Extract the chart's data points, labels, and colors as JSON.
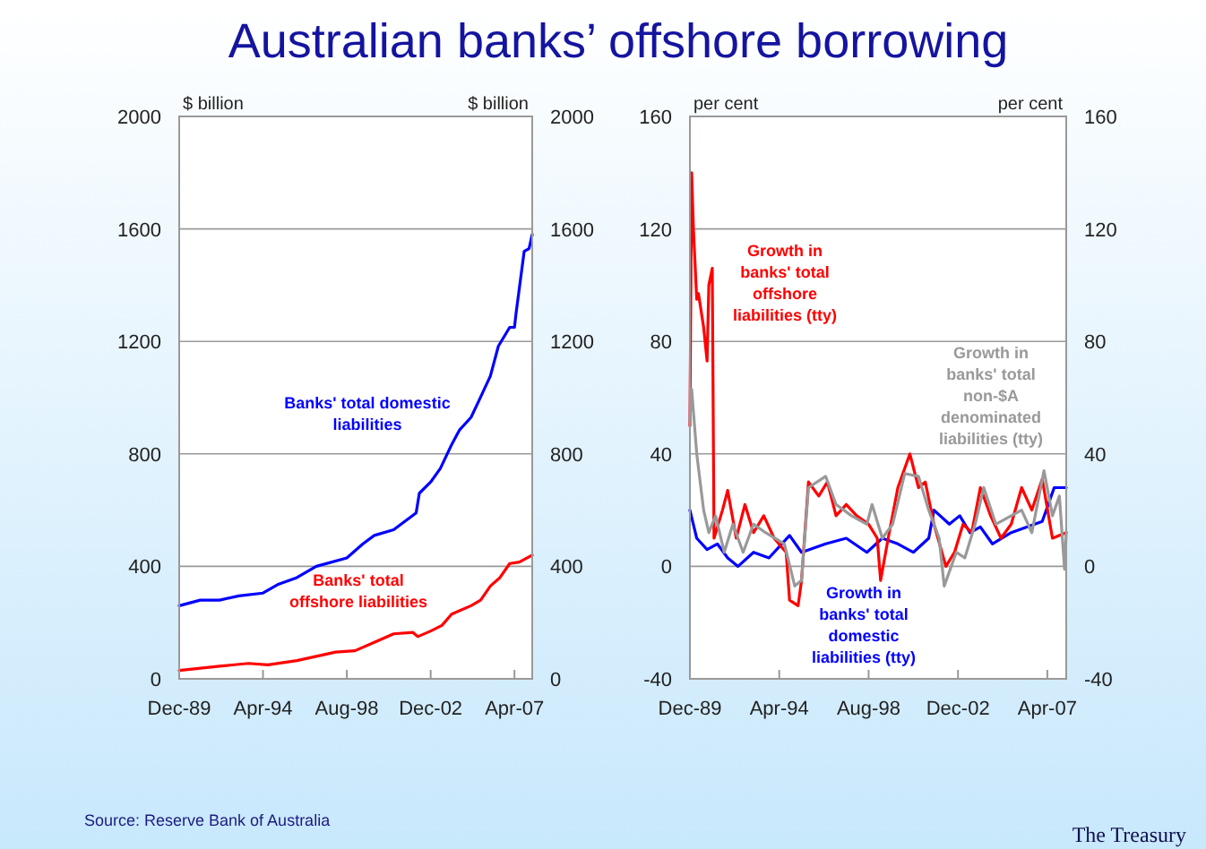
{
  "chart_data": [
    {
      "type": "line",
      "title": "Australian banks’ offshore borrowing",
      "ylabel": "$ billion",
      "y2label": "$ billion",
      "xlim": [
        "1989-12",
        "2008-03"
      ],
      "xticks": [
        {
          "value": "1989-12",
          "label": "Dec-89"
        },
        {
          "value": "1994-04",
          "label": "Apr-94"
        },
        {
          "value": "1998-08",
          "label": "Aug-98"
        },
        {
          "value": "2002-12",
          "label": "Dec-02"
        },
        {
          "value": "2007-04",
          "label": "Apr-07"
        }
      ],
      "ylim": [
        0,
        2000
      ],
      "yticks": [
        0,
        400,
        800,
        1200,
        1600,
        2000
      ],
      "y2lim": [
        0,
        2000
      ],
      "y2ticks": [
        0,
        400,
        800,
        1200,
        1600,
        2000
      ],
      "grid": "y",
      "legend": false,
      "annotations": [
        "Source: Reserve Bank of Australia",
        "The Treasury"
      ],
      "series": [
        {
          "name": "Banks' total domestic liabilities",
          "color": "#0000ff",
          "x": [
            "1989-12",
            "1991-01",
            "1992-01",
            "1993-01",
            "1994-04",
            "1995-01",
            "1996-01",
            "1997-01",
            "1998-08",
            "1999-06",
            "2000-01",
            "2001-01",
            "2002-03",
            "2002-05",
            "2002-12",
            "2003-06",
            "2004-01",
            "2004-06",
            "2005-01",
            "2005-06",
            "2006-01",
            "2006-06",
            "2007-01",
            "2007-04",
            "2007-05",
            "2007-10",
            "2008-01",
            "2008-03"
          ],
          "values": [
            260,
            280,
            280,
            295,
            305,
            335,
            360,
            400,
            430,
            480,
            510,
            530,
            590,
            660,
            700,
            748,
            833,
            886,
            930,
            990,
            1077,
            1183,
            1250,
            1250,
            1300,
            1520,
            1530,
            1580
          ]
        },
        {
          "name": "Banks' total offshore liabilities",
          "color": "#ff0000",
          "x": [
            "1989-12",
            "1992-01",
            "1993-07",
            "1994-07",
            "1996-01",
            "1997-01",
            "1998-01",
            "1999-01",
            "2000-01",
            "2001-01",
            "2002-01",
            "2002-04",
            "2002-12",
            "2003-07",
            "2004-01",
            "2005-01",
            "2005-07",
            "2006-01",
            "2006-07",
            "2007-01",
            "2007-07",
            "2008-03"
          ],
          "values": [
            30,
            45,
            55,
            50,
            65,
            80,
            95,
            100,
            130,
            160,
            165,
            150,
            170,
            190,
            230,
            260,
            280,
            330,
            360,
            410,
            415,
            440
          ]
        }
      ]
    },
    {
      "type": "line",
      "ylabel": "per cent",
      "y2label": "per cent",
      "xlim": [
        "1989-12",
        "2008-03"
      ],
      "xticks": [
        {
          "value": "1989-12",
          "label": "Dec-89"
        },
        {
          "value": "1994-04",
          "label": "Apr-94"
        },
        {
          "value": "1998-08",
          "label": "Aug-98"
        },
        {
          "value": "2002-12",
          "label": "Dec-02"
        },
        {
          "value": "2007-04",
          "label": "Apr-07"
        }
      ],
      "ylim": [
        -40,
        160
      ],
      "yticks": [
        -40,
        0,
        40,
        80,
        120,
        160
      ],
      "y2lim": [
        -40,
        160
      ],
      "y2ticks": [
        -40,
        0,
        40,
        80,
        120,
        160
      ],
      "grid": "y",
      "legend": false,
      "series": [
        {
          "name": "Growth in banks' total domestic liabilities (tty)",
          "color": "#0000ff",
          "x": [
            "1989-12",
            "1990-04",
            "1990-10",
            "1991-04",
            "1991-10",
            "1992-04",
            "1993-01",
            "1993-10",
            "1994-10",
            "1995-05",
            "1996-07",
            "1997-07",
            "1998-07",
            "1999-04",
            "2000-01",
            "2000-10",
            "2001-07",
            "2001-10",
            "2002-07",
            "2003-01",
            "2003-07",
            "2004-01",
            "2004-08",
            "2005-07",
            "2006-04",
            "2007-01",
            "2007-08",
            "2008-03"
          ],
          "values": [
            20,
            10,
            6,
            8,
            3,
            0,
            5,
            3,
            11,
            5,
            8,
            10,
            5,
            10,
            8,
            5,
            10,
            20,
            15,
            18,
            12,
            14,
            8,
            12,
            14,
            16,
            28,
            28
          ]
        },
        {
          "name": "Growth in banks' total offshore liabilities (tty)",
          "color": "#ff0000",
          "x": [
            "1989-12",
            "1990-01",
            "1990-02",
            "1990-04",
            "1990-05",
            "1990-08",
            "1990-10",
            "1990-11",
            "1991-01",
            "1991-02",
            "1991-07",
            "1991-10",
            "1992-03",
            "1992-08",
            "1993-01",
            "1993-07",
            "1994-01",
            "1994-08",
            "1994-10",
            "1995-03",
            "1995-05",
            "1995-09",
            "1996-03",
            "1996-08",
            "1997-01",
            "1997-07",
            "1998-01",
            "1998-08",
            "1999-01",
            "1999-03",
            "1999-08",
            "2000-01",
            "2000-08",
            "2001-01",
            "2001-05",
            "2001-10",
            "2002-05",
            "2002-10",
            "2003-03",
            "2003-08",
            "2004-01",
            "2004-07",
            "2005-01",
            "2005-07",
            "2006-01",
            "2006-07",
            "2007-01",
            "2007-07",
            "2008-03"
          ],
          "values": [
            50,
            140,
            120,
            95,
            97,
            85,
            73,
            100,
            106,
            10,
            20,
            27,
            10,
            22,
            12,
            18,
            10,
            5,
            -12,
            -14,
            -5,
            30,
            25,
            30,
            18,
            22,
            18,
            15,
            10,
            -5,
            12,
            28,
            40,
            28,
            30,
            15,
            0,
            5,
            15,
            12,
            28,
            18,
            10,
            15,
            28,
            20,
            31,
            10,
            12
          ]
        },
        {
          "name": "Growth in banks' total non-$A denominated liabilities (tty)",
          "color": "#999999",
          "x": [
            "1989-12",
            "1990-01",
            "1990-04",
            "1990-08",
            "1990-11",
            "1991-03",
            "1991-08",
            "1992-01",
            "1992-07",
            "1993-01",
            "1993-08",
            "1994-07",
            "1995-01",
            "1995-05",
            "1995-09",
            "1996-07",
            "1997-01",
            "1997-10",
            "1998-07",
            "1998-10",
            "1999-04",
            "1999-10",
            "2000-05",
            "2001-01",
            "2001-07",
            "2002-01",
            "2002-04",
            "2002-11",
            "2003-04",
            "2003-10",
            "2004-03",
            "2004-10",
            "2005-07",
            "2006-01",
            "2006-07",
            "2007-02",
            "2007-07",
            "2007-11",
            "2008-02",
            "2008-03"
          ],
          "values": [
            52,
            63,
            40,
            20,
            12,
            18,
            5,
            15,
            5,
            15,
            12,
            8,
            -7,
            -5,
            28,
            32,
            22,
            18,
            15,
            22,
            10,
            15,
            33,
            32,
            20,
            10,
            -7,
            5,
            3,
            15,
            28,
            15,
            18,
            20,
            12,
            34,
            18,
            25,
            -1,
            12
          ]
        }
      ]
    }
  ]
}
